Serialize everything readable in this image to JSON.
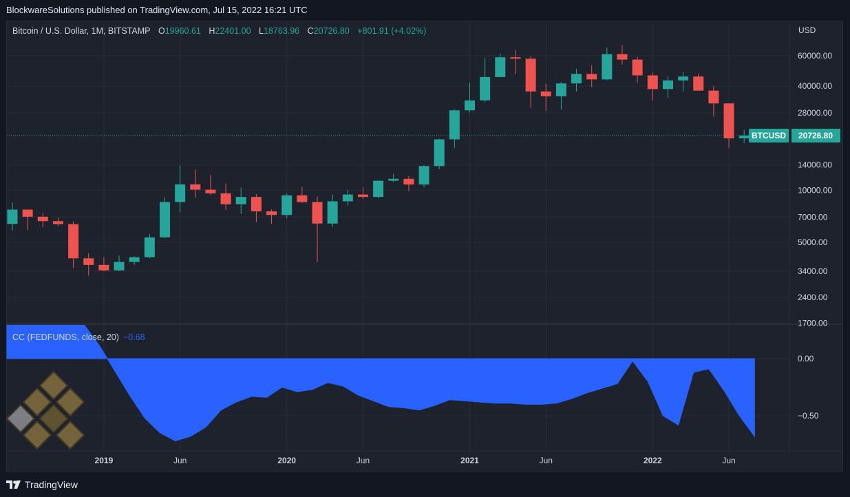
{
  "header": {
    "published_text": "BlockwareSolutions published on TradingView.com, Jul 15, 2022 16:21 UTC"
  },
  "legend": {
    "symbol": "Bitcoin / U.S. Dollar, 1M, BITSTAMP",
    "o_label": "O",
    "o_value": "19960.61",
    "h_label": "H",
    "h_value": "22401.00",
    "l_label": "L",
    "l_value": "18763.96",
    "c_label": "C",
    "c_value": "20726.80",
    "change": "+801.91 (+4.02%)"
  },
  "indicator_legend": {
    "label": "CC (FEDFUNDS, close, 20)",
    "value": "−0.68"
  },
  "price_axis": {
    "currency": "USD",
    "ticks": [
      "60000.00",
      "40000.00",
      "28000.00",
      "14000.00",
      "10000.00",
      "7000.00",
      "5000.00",
      "3400.00",
      "2400.00",
      "1700.00"
    ],
    "last_price_symbol": "BTCUSD",
    "last_price": "20726.80"
  },
  "indicator_axis": {
    "ticks": [
      "0.00",
      "−0.50"
    ]
  },
  "time_axis": {
    "labels": [
      "2019",
      "Jun",
      "2020",
      "Jun",
      "2021",
      "Jun",
      "2022",
      "Jun"
    ]
  },
  "footer": {
    "brand": "TradingView"
  },
  "colors": {
    "up": "#26a69a",
    "down": "#ef5350",
    "indicator": "#2962ff",
    "background": "#1e222d",
    "grid": "#2a2e39"
  },
  "chart_data": [
    {
      "type": "candlestick",
      "title": "Bitcoin / U.S. Dollar, 1M, BITSTAMP",
      "scale": "log",
      "ylim": [
        1700,
        80000
      ],
      "start": "2018-07",
      "interval": "1M",
      "candles": [
        {
          "t": "2018-07",
          "o": 6390,
          "h": 8500,
          "l": 5850,
          "c": 7730
        },
        {
          "t": "2018-08",
          "o": 7730,
          "h": 7500,
          "l": 5880,
          "c": 7030
        },
        {
          "t": "2018-09",
          "o": 7030,
          "h": 7400,
          "l": 6100,
          "c": 6630
        },
        {
          "t": "2018-10",
          "o": 6630,
          "h": 6950,
          "l": 6200,
          "c": 6370
        },
        {
          "t": "2018-11",
          "o": 6370,
          "h": 6600,
          "l": 3550,
          "c": 4040
        },
        {
          "t": "2018-12",
          "o": 4040,
          "h": 4320,
          "l": 3200,
          "c": 3700
        },
        {
          "t": "2019-01",
          "o": 3700,
          "h": 4100,
          "l": 3400,
          "c": 3440
        },
        {
          "t": "2019-02",
          "o": 3440,
          "h": 4200,
          "l": 3400,
          "c": 3850
        },
        {
          "t": "2019-03",
          "o": 3850,
          "h": 4150,
          "l": 3700,
          "c": 4100
        },
        {
          "t": "2019-04",
          "o": 4100,
          "h": 5600,
          "l": 4050,
          "c": 5340
        },
        {
          "t": "2019-05",
          "o": 5340,
          "h": 9100,
          "l": 5300,
          "c": 8550
        },
        {
          "t": "2019-06",
          "o": 8550,
          "h": 13880,
          "l": 7450,
          "c": 10820
        },
        {
          "t": "2019-07",
          "o": 10820,
          "h": 13200,
          "l": 9050,
          "c": 10080
        },
        {
          "t": "2019-08",
          "o": 10080,
          "h": 12300,
          "l": 9400,
          "c": 9600
        },
        {
          "t": "2019-09",
          "o": 9600,
          "h": 10950,
          "l": 7700,
          "c": 8300
        },
        {
          "t": "2019-10",
          "o": 8300,
          "h": 10350,
          "l": 7300,
          "c": 9150
        },
        {
          "t": "2019-11",
          "o": 9150,
          "h": 9500,
          "l": 6550,
          "c": 7550
        },
        {
          "t": "2019-12",
          "o": 7550,
          "h": 7750,
          "l": 6400,
          "c": 7200
        },
        {
          "t": "2020-01",
          "o": 7200,
          "h": 9600,
          "l": 6900,
          "c": 9350
        },
        {
          "t": "2020-02",
          "o": 9350,
          "h": 10500,
          "l": 8450,
          "c": 8550
        },
        {
          "t": "2020-03",
          "o": 8550,
          "h": 9200,
          "l": 3850,
          "c": 6420
        },
        {
          "t": "2020-04",
          "o": 6420,
          "h": 9450,
          "l": 6150,
          "c": 8630
        },
        {
          "t": "2020-05",
          "o": 8630,
          "h": 10050,
          "l": 8150,
          "c": 9450
        },
        {
          "t": "2020-06",
          "o": 9450,
          "h": 10400,
          "l": 8900,
          "c": 9150
        },
        {
          "t": "2020-07",
          "o": 9150,
          "h": 11400,
          "l": 9000,
          "c": 11350
        },
        {
          "t": "2020-08",
          "o": 11350,
          "h": 12450,
          "l": 11100,
          "c": 11650
        },
        {
          "t": "2020-09",
          "o": 11650,
          "h": 12050,
          "l": 9900,
          "c": 10800
        },
        {
          "t": "2020-10",
          "o": 10800,
          "h": 14000,
          "l": 10400,
          "c": 13800
        },
        {
          "t": "2020-11",
          "o": 13800,
          "h": 19900,
          "l": 13250,
          "c": 19700
        },
        {
          "t": "2020-12",
          "o": 19700,
          "h": 29400,
          "l": 17600,
          "c": 29000
        },
        {
          "t": "2021-01",
          "o": 29000,
          "h": 41900,
          "l": 28200,
          "c": 33100
        },
        {
          "t": "2021-02",
          "o": 33100,
          "h": 58300,
          "l": 32300,
          "c": 45200
        },
        {
          "t": "2021-03",
          "o": 45200,
          "h": 61800,
          "l": 45000,
          "c": 58800
        },
        {
          "t": "2021-04",
          "o": 58800,
          "h": 64900,
          "l": 47000,
          "c": 57700
        },
        {
          "t": "2021-05",
          "o": 57700,
          "h": 59500,
          "l": 30000,
          "c": 37300
        },
        {
          "t": "2021-06",
          "o": 37300,
          "h": 41300,
          "l": 28800,
          "c": 35000
        },
        {
          "t": "2021-07",
          "o": 35000,
          "h": 42300,
          "l": 29300,
          "c": 41500
        },
        {
          "t": "2021-08",
          "o": 41500,
          "h": 50500,
          "l": 37300,
          "c": 47100
        },
        {
          "t": "2021-09",
          "o": 47100,
          "h": 52900,
          "l": 39600,
          "c": 43800
        },
        {
          "t": "2021-10",
          "o": 43800,
          "h": 67000,
          "l": 43300,
          "c": 61300
        },
        {
          "t": "2021-11",
          "o": 61300,
          "h": 69000,
          "l": 53300,
          "c": 57000
        },
        {
          "t": "2021-12",
          "o": 57000,
          "h": 59100,
          "l": 42000,
          "c": 46200
        },
        {
          "t": "2022-01",
          "o": 46200,
          "h": 47900,
          "l": 33100,
          "c": 38500
        },
        {
          "t": "2022-02",
          "o": 38500,
          "h": 45800,
          "l": 34300,
          "c": 43200
        },
        {
          "t": "2022-03",
          "o": 43200,
          "h": 48200,
          "l": 37200,
          "c": 45500
        },
        {
          "t": "2022-04",
          "o": 45500,
          "h": 47400,
          "l": 37700,
          "c": 37700
        },
        {
          "t": "2022-05",
          "o": 37700,
          "h": 40000,
          "l": 26700,
          "c": 31800
        },
        {
          "t": "2022-06",
          "o": 31800,
          "h": 31900,
          "l": 17600,
          "c": 19960
        },
        {
          "t": "2022-07",
          "o": 19960.61,
          "h": 22401.0,
          "l": 18763.96,
          "c": 20726.8
        }
      ]
    },
    {
      "type": "area",
      "title": "CC (FEDFUNDS, close, 20)",
      "ylim": [
        -0.82,
        0.3
      ],
      "series": [
        {
          "values": [
            0.3,
            0.3,
            0.3,
            0.3,
            0.3,
            0.3,
            0.12,
            -0.1,
            -0.32,
            -0.52,
            -0.65,
            -0.72,
            -0.68,
            -0.6,
            -0.45,
            -0.38,
            -0.33,
            -0.34,
            -0.25,
            -0.29,
            -0.27,
            -0.21,
            -0.24,
            -0.32,
            -0.37,
            -0.42,
            -0.43,
            -0.45,
            -0.41,
            -0.36,
            -0.37,
            -0.38,
            -0.39,
            -0.39,
            -0.4,
            -0.4,
            -0.39,
            -0.35,
            -0.3,
            -0.26,
            -0.22,
            -0.02,
            -0.2,
            -0.5,
            -0.58,
            -0.12,
            -0.09,
            -0.28,
            -0.5,
            -0.68
          ]
        }
      ]
    }
  ]
}
